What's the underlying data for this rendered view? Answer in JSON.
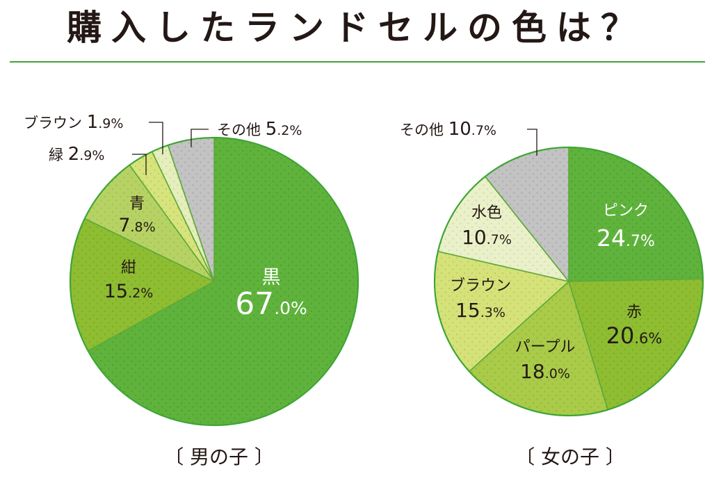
{
  "title": "購入したランドセルの色は？",
  "colors": {
    "accent": "#3fa535",
    "outline": "#3fa535",
    "slice_outline": "#5ea83a",
    "leader": "#231815"
  },
  "chart_data": [
    {
      "type": "pie",
      "group_label": "〔 男の子 〕",
      "unit": "%",
      "slices": [
        {
          "label": "黒",
          "value": 67.0,
          "display": "67.0%",
          "color": "#5fb33c",
          "text_color": "#ffffff",
          "dots": "#4d9e2f",
          "label_place": "inside"
        },
        {
          "label": "紺",
          "value": 15.2,
          "display": "15.2%",
          "color": "#8ebd32",
          "text_color": "#231815",
          "dots": "#79a828",
          "label_place": "inside"
        },
        {
          "label": "青",
          "value": 7.8,
          "display": "7.8%",
          "color": "#b7d264",
          "text_color": "#231815",
          "dots": "#9fbf4a",
          "label_place": "inside"
        },
        {
          "label": "緑",
          "value": 2.9,
          "display": "2.9%",
          "color": "#d7e37c",
          "text_color": "#231815",
          "dots": "#bccf5c",
          "label_place": "outside"
        },
        {
          "label": "ブラウン",
          "value": 1.9,
          "display": "1.9%",
          "color": "#e5eebc",
          "text_color": "#231815",
          "dots": "#cbd99a",
          "label_place": "outside"
        },
        {
          "label": "その他",
          "value": 5.2,
          "display": "5.2%",
          "color": "#c3c3c3",
          "text_color": "#231815",
          "dots": "#a9a9a9",
          "label_place": "outside"
        }
      ]
    },
    {
      "type": "pie",
      "group_label": "〔 女の子 〕",
      "unit": "%",
      "slices": [
        {
          "label": "ピンク",
          "value": 24.7,
          "display": "24.7%",
          "color": "#5fb33c",
          "text_color": "#ffffff",
          "dots": "#4d9e2f",
          "label_place": "inside"
        },
        {
          "label": "赤",
          "value": 20.6,
          "display": "20.6%",
          "color": "#8ebd32",
          "text_color": "#231815",
          "dots": "#79a828",
          "label_place": "inside"
        },
        {
          "label": "パープル",
          "value": 18.0,
          "display": "18.0%",
          "color": "#a9cb49",
          "text_color": "#231815",
          "dots": "#92b636",
          "label_place": "inside"
        },
        {
          "label": "ブラウン",
          "value": 15.3,
          "display": "15.3%",
          "color": "#d5e27a",
          "text_color": "#231815",
          "dots": "#bccd5a",
          "label_place": "inside"
        },
        {
          "label": "水色",
          "value": 10.7,
          "display": "10.7%",
          "color": "#eaf0c9",
          "text_color": "#231815",
          "dots": "#cfdca4",
          "label_place": "inside"
        },
        {
          "label": "その他",
          "value": 10.7,
          "display": "10.7%",
          "color": "#c3c3c3",
          "text_color": "#231815",
          "dots": "#a9a9a9",
          "label_place": "outside"
        }
      ]
    }
  ]
}
